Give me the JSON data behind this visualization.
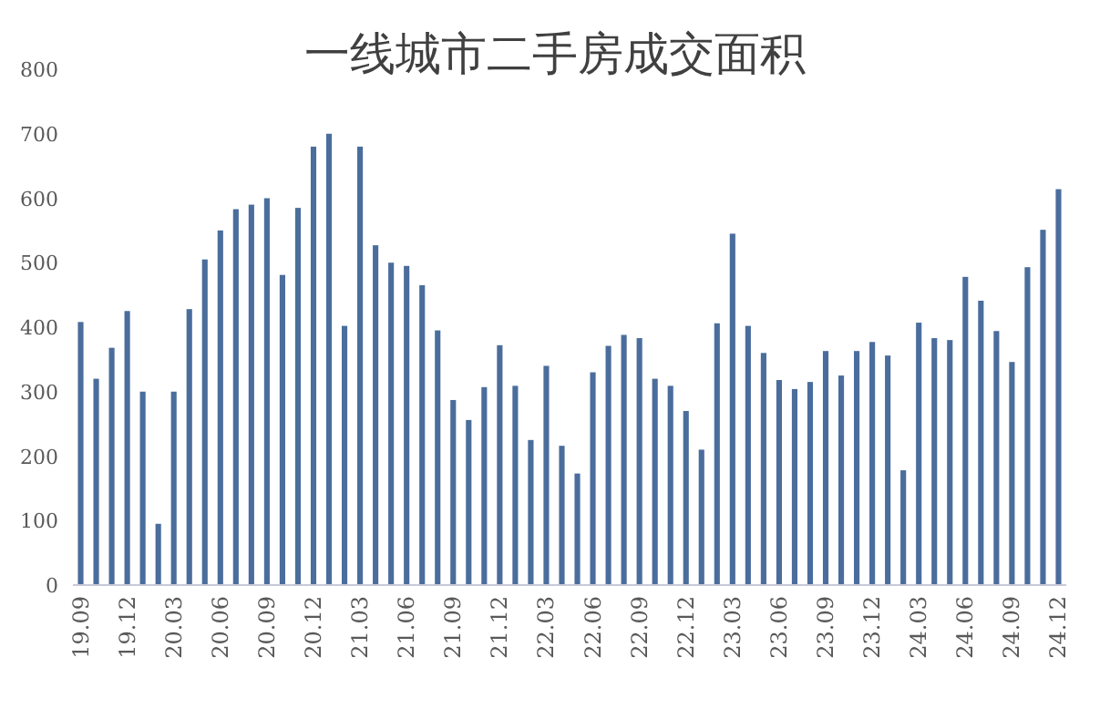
{
  "chart_data": {
    "type": "bar",
    "title": "一线城市二手房成交面积",
    "categories": [
      "19.09",
      null,
      null,
      "19.12",
      null,
      null,
      "20.03",
      null,
      null,
      "20.06",
      null,
      null,
      "20.09",
      null,
      null,
      "20.12",
      null,
      null,
      "21.03",
      null,
      null,
      "21.06",
      null,
      null,
      "21.09",
      null,
      null,
      "21.12",
      null,
      null,
      "22.03",
      null,
      null,
      "22.06",
      null,
      null,
      "22.09",
      null,
      null,
      "22.12",
      null,
      null,
      "23.03",
      null,
      null,
      "23.06",
      null,
      null,
      "23.09",
      null,
      null,
      "23.12",
      null,
      null,
      "24.03",
      null,
      null,
      "24.06",
      null,
      null,
      "24.09",
      null,
      null,
      "24.12"
    ],
    "values": [
      408,
      320,
      368,
      425,
      300,
      95,
      300,
      428,
      505,
      550,
      583,
      590,
      600,
      481,
      585,
      680,
      700,
      402,
      680,
      527,
      500,
      495,
      465,
      395,
      287,
      256,
      307,
      372,
      309,
      225,
      340,
      216,
      173,
      330,
      371,
      388,
      383,
      320,
      309,
      270,
      210,
      406,
      545,
      402,
      360,
      318,
      304,
      315,
      363,
      325,
      363,
      377,
      356,
      178,
      407,
      383,
      380,
      478,
      441,
      394,
      346,
      493,
      551,
      614
    ],
    "color": "#4a6d9c",
    "ylim": [
      0,
      800
    ],
    "yticks": [
      0,
      100,
      200,
      300,
      400,
      500,
      600,
      700,
      800
    ]
  }
}
